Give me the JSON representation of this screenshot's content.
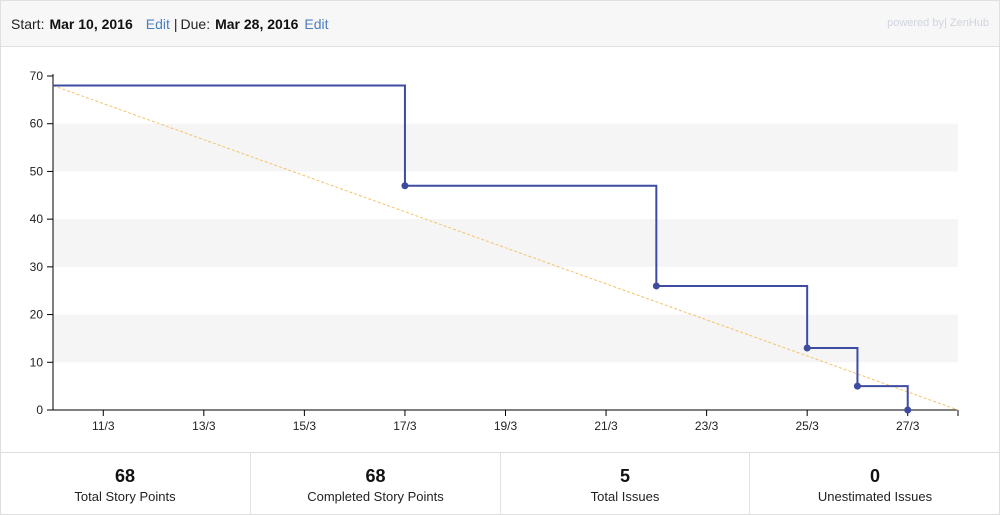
{
  "header": {
    "start_label": "Start:",
    "start_date": "Mar 10, 2016",
    "edit_start": "Edit",
    "separator": "|",
    "due_label": "Due:",
    "due_date": "Mar 28, 2016",
    "edit_due": "Edit",
    "powered_by": "powered by| ZenHub"
  },
  "chart_data": {
    "type": "line",
    "title": "",
    "xlabel": "",
    "ylabel": "",
    "ylim": [
      0,
      70
    ],
    "yticks": [
      0,
      10,
      20,
      30,
      40,
      50,
      60,
      70
    ],
    "xlim": [
      "2016-03-10",
      "2016-03-28"
    ],
    "xticks": [
      {
        "date": "2016-03-11",
        "label": "11/3"
      },
      {
        "date": "2016-03-13",
        "label": "13/3"
      },
      {
        "date": "2016-03-15",
        "label": "15/3"
      },
      {
        "date": "2016-03-17",
        "label": "17/3"
      },
      {
        "date": "2016-03-19",
        "label": "19/3"
      },
      {
        "date": "2016-03-21",
        "label": "21/3"
      },
      {
        "date": "2016-03-23",
        "label": "23/3"
      },
      {
        "date": "2016-03-25",
        "label": "25/3"
      },
      {
        "date": "2016-03-27",
        "label": "27/3"
      }
    ],
    "grid": "alternating horizontal bands",
    "series": [
      {
        "role": "actual",
        "style": "step",
        "color": "#3d4ba0",
        "points": [
          {
            "x": "2016-03-10",
            "y": 68,
            "marker": false
          },
          {
            "x": "2016-03-17",
            "y": 47,
            "marker": true
          },
          {
            "x": "2016-03-22",
            "y": 26,
            "marker": true
          },
          {
            "x": "2016-03-25",
            "y": 13,
            "marker": true
          },
          {
            "x": "2016-03-26",
            "y": 5,
            "marker": true
          },
          {
            "x": "2016-03-27",
            "y": 0,
            "marker": true
          }
        ]
      },
      {
        "role": "ideal",
        "style": "dashed",
        "color": "#f5c26b",
        "points": [
          {
            "x": "2016-03-10",
            "y": 68
          },
          {
            "x": "2016-03-28",
            "y": 0
          }
        ]
      }
    ]
  },
  "stats": [
    {
      "value": "68",
      "label": "Total Story Points"
    },
    {
      "value": "68",
      "label": "Completed Story Points"
    },
    {
      "value": "5",
      "label": "Total Issues"
    },
    {
      "value": "0",
      "label": "Unestimated Issues"
    }
  ]
}
